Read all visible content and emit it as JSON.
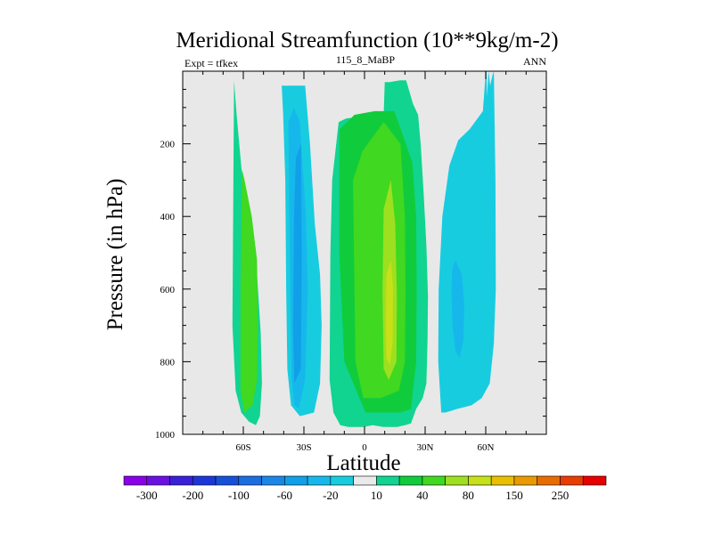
{
  "chart_data": {
    "type": "heatmap",
    "title": "Meridional Streamfunction (10**9kg/m-2)",
    "left_string": "Expt = tfkex",
    "center_string": "115_8_MaBP",
    "right_string": "ANN",
    "xlabel": "Latitude",
    "ylabel": "Pressure (in hPa)",
    "x_ticks": [
      {
        "value": -60,
        "label": "60S"
      },
      {
        "value": -30,
        "label": "30S"
      },
      {
        "value": 0,
        "label": "0"
      },
      {
        "value": 30,
        "label": "30N"
      },
      {
        "value": 60,
        "label": "60N"
      }
    ],
    "y_ticks": [
      {
        "value": 200,
        "label": "200"
      },
      {
        "value": 400,
        "label": "400"
      },
      {
        "value": 600,
        "label": "600"
      },
      {
        "value": 800,
        "label": "800"
      },
      {
        "value": 1000,
        "label": "1000"
      }
    ],
    "xlim": [
      -90,
      90
    ],
    "ylim": [
      0,
      1000
    ],
    "background_color": "#e8e8e8",
    "colorbar": {
      "levels": [
        -300,
        -250,
        -200,
        -150,
        -100,
        -80,
        -60,
        -40,
        -20,
        -10,
        10,
        20,
        40,
        60,
        80,
        100,
        150,
        200,
        250,
        300
      ],
      "labels": [
        "-300",
        "-200",
        "-100",
        "-60",
        "-20",
        "10",
        "40",
        "80",
        "150",
        "250"
      ],
      "colors": [
        "#8a00e8",
        "#6a10e0",
        "#3a20d8",
        "#1c36d8",
        "#1650d8",
        "#1a6ee0",
        "#1a86e6",
        "#10a0e8",
        "#16b8ec",
        "#18cce0",
        "#eaeaea",
        "#10d490",
        "#10cc3c",
        "#40d820",
        "#9ce020",
        "#c8e018",
        "#e8c000",
        "#e89a00",
        "#e86c00",
        "#e83c00",
        "#e80000"
      ]
    },
    "contours": [
      {
        "name": "s-high-lat-cell",
        "level": 10,
        "lat": [
          -64.6,
          -63.3,
          -60.4,
          -56.2,
          -53.2,
          -51.4,
          -50.8,
          -51.8,
          -53.8,
          -57.2,
          -61.0,
          -63.8,
          -65.4,
          -64.6
        ],
        "p": [
          25,
          120,
          300,
          420,
          560,
          720,
          860,
          950,
          975,
          965,
          940,
          880,
          700,
          25
        ]
      },
      {
        "name": "s-high-lat-cell",
        "level": 40,
        "lat": [
          -60.6,
          -59.4,
          -55.8,
          -53.2,
          -52.8,
          -53.2,
          -55.4,
          -59.5,
          -61.4,
          -61.4,
          -60.6
        ],
        "p": [
          270,
          300,
          400,
          520,
          700,
          850,
          920,
          940,
          880,
          600,
          270
        ]
      },
      {
        "name": "s-ferrel-cell",
        "level": -10,
        "lat": [
          -41.0,
          -29.4,
          -27.0,
          -24.6,
          -22.0,
          -21.2,
          -22.0,
          -25.0,
          -32.0,
          -36.4,
          -38.2,
          -38.8,
          -39.2,
          -40.3,
          -41.0
        ],
        "p": [
          40,
          40,
          200,
          420,
          560,
          700,
          860,
          940,
          950,
          920,
          820,
          600,
          300,
          120,
          40
        ]
      },
      {
        "name": "s-ferrel-cell",
        "level": -20,
        "lat": [
          -37.7,
          -35.0,
          -32.0,
          -29.0,
          -28.0,
          -29.4,
          -32.5,
          -34.7,
          -36.0,
          -36.8,
          -37.7
        ],
        "p": [
          140,
          100,
          140,
          400,
          600,
          850,
          930,
          920,
          850,
          600,
          140
        ]
      },
      {
        "name": "s-ferrel-cell",
        "level": -40,
        "lat": [
          -34.0,
          -31.5,
          -31.0,
          -31.5,
          -34.7,
          -35.4,
          -34.9,
          -34.0
        ],
        "p": [
          240,
          200,
          500,
          820,
          860,
          700,
          400,
          240
        ]
      },
      {
        "name": "tropical-cell",
        "level": 10,
        "lat": [
          -12.8,
          -9.0,
          9.5,
          10.0,
          12.4,
          17.6,
          20.6,
          24.0,
          26.5,
          27.8,
          29.2,
          30.6,
          31.4,
          31.2,
          30.6,
          28.8,
          25.6,
          23.0,
          20.0,
          16.0,
          9.5,
          4.0,
          -0.6,
          -8.0,
          -12.0,
          -15.4,
          -17.3,
          -16.9,
          -16.0,
          -12.8
        ],
        "p": [
          140,
          130,
          120,
          30,
          30,
          25,
          25,
          90,
          120,
          200,
          330,
          480,
          620,
          740,
          860,
          900,
          930,
          970,
          975,
          980,
          980,
          975,
          980,
          980,
          975,
          940,
          850,
          500,
          300,
          140
        ]
      },
      {
        "name": "tropical-cell",
        "level": 20,
        "lat": [
          -12.4,
          -5.0,
          5.0,
          14.8,
          23.6,
          25.6,
          25.8,
          25.6,
          23.0,
          18.0,
          8.0,
          0.5,
          -10.0,
          -12.5,
          -12.4
        ],
        "p": [
          160,
          120,
          110,
          110,
          250,
          400,
          600,
          800,
          930,
          940,
          940,
          940,
          800,
          500,
          160
        ]
      },
      {
        "name": "tropical-cell",
        "level": 40,
        "lat": [
          -5.7,
          -1.0,
          9.5,
          17.8,
          20.0,
          20.3,
          20.0,
          17.0,
          8.0,
          -0.6,
          -4.5,
          -5.7
        ],
        "p": [
          300,
          220,
          140,
          200,
          400,
          600,
          800,
          880,
          900,
          900,
          800,
          300
        ]
      },
      {
        "name": "tropical-cell",
        "level": 60,
        "lat": [
          9.5,
          13.0,
          15.2,
          16.0,
          15.8,
          12.0,
          9.5,
          8.9,
          9.5
        ],
        "p": [
          380,
          300,
          420,
          620,
          800,
          850,
          820,
          600,
          380
        ]
      },
      {
        "name": "tropical-cell",
        "level": 80,
        "lat": [
          10.9,
          13.0,
          14.1,
          13.9,
          12.5,
          10.9,
          10.5,
          10.9
        ],
        "p": [
          560,
          520,
          600,
          750,
          810,
          790,
          700,
          560
        ]
      },
      {
        "name": "n-ferrel-cell",
        "level": -10,
        "lat": [
          46.4,
          52.0,
          58.6,
          59.9,
          60.4,
          60.6,
          61.4,
          62.2,
          63.4,
          64.0,
          64.8,
          65.0,
          64.0,
          62.0,
          58.0,
          53.0,
          46.0,
          40.0,
          38.0,
          36.5,
          36.7,
          38.5,
          42.0,
          46.4
        ],
        "p": [
          190,
          160,
          110,
          10,
          0,
          70,
          0,
          40,
          10,
          0,
          300,
          600,
          750,
          860,
          900,
          920,
          930,
          940,
          940,
          800,
          600,
          400,
          260,
          190
        ]
      },
      {
        "name": "n-ferrel-cell",
        "level": -20,
        "lat": [
          45.0,
          48.2,
          49.4,
          49.0,
          47.0,
          45.0,
          43.5,
          43.0,
          43.5,
          45.0
        ],
        "p": [
          520,
          560,
          640,
          740,
          790,
          770,
          700,
          600,
          540,
          520
        ]
      }
    ]
  }
}
